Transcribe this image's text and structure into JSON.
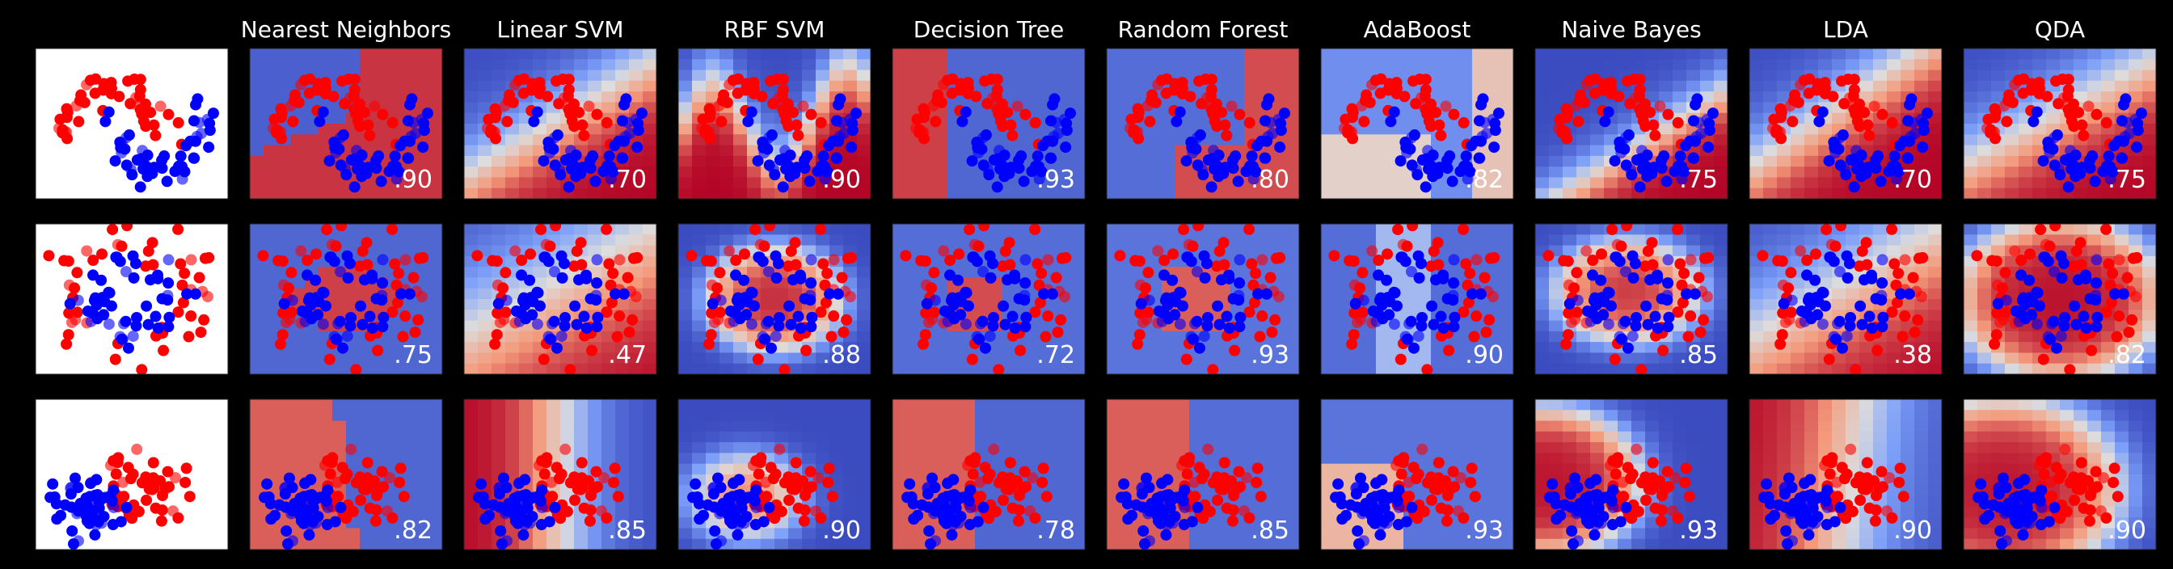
{
  "chart_data": {
    "type": "scatter",
    "layout": "3 datasets (rows) x 10 panels (input data + 9 classifiers)",
    "background_color": "#000000",
    "class_colors": {
      "class_0": "#ff0000",
      "class_1": "#0000ff"
    },
    "colormap": "coolwarm (blue #3b4cc0 -> gray -> red #b40426)",
    "column_titles": [
      "",
      "Nearest Neighbors",
      "Linear SVM",
      "RBF SVM",
      "Decision Tree",
      "Random Forest",
      "AdaBoost",
      "Naive Bayes",
      "LDA",
      "QDA"
    ],
    "datasets": [
      {
        "name": "moons",
        "scores": [
          ".90",
          ".70",
          ".90",
          ".93",
          ".80",
          ".82",
          ".75",
          ".70",
          ".75"
        ]
      },
      {
        "name": "circles",
        "scores": [
          ".75",
          ".47",
          ".88",
          ".72",
          ".93",
          ".90",
          ".85",
          ".38",
          ".82"
        ]
      },
      {
        "name": "linearly_separable",
        "scores": [
          ".82",
          ".85",
          ".90",
          ".78",
          ".85",
          ".93",
          ".93",
          ".90",
          ".90"
        ]
      }
    ],
    "grid": false
  }
}
